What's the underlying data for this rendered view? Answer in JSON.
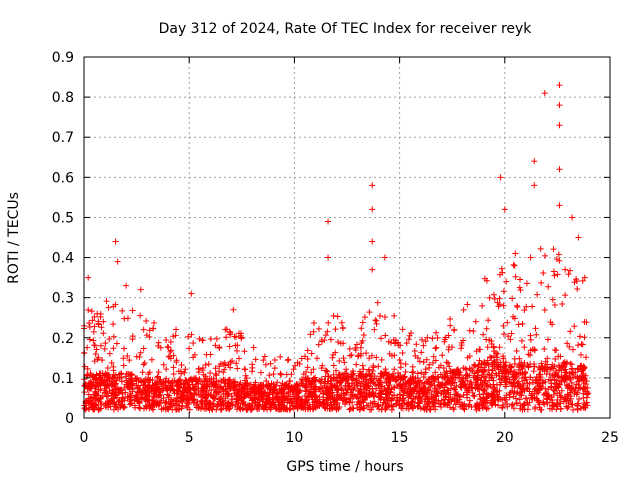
{
  "chart_data": {
    "type": "scatter",
    "title": "Day 312 of 2024, Rate Of TEC Index for receiver reyk",
    "xlabel": "GPS time / hours",
    "ylabel": "ROTI / TECUs",
    "xlim": [
      0,
      25
    ],
    "ylim": [
      0,
      0.9
    ],
    "xticks": [
      0,
      5,
      10,
      15,
      20,
      25
    ],
    "xtick_labels": [
      "0",
      "5",
      "10",
      "15",
      "20",
      "25"
    ],
    "yticks": [
      0,
      0.1,
      0.2,
      0.3,
      0.4,
      0.5,
      0.6,
      0.7,
      0.8,
      0.9
    ],
    "ytick_labels": [
      "0",
      "0.1",
      "0.2",
      "0.3",
      "0.4",
      "0.5",
      "0.6",
      "0.7",
      "0.8",
      "0.9"
    ],
    "grid": true,
    "marker": "+",
    "color": "#ff0000",
    "series": [
      {
        "name": "ROTI",
        "x_range": [
          0,
          24
        ],
        "envelope": [
          {
            "hour": 0,
            "low": 0.02,
            "typical": 0.08,
            "high": 0.27
          },
          {
            "hour": 1,
            "low": 0.02,
            "typical": 0.08,
            "high": 0.3
          },
          {
            "hour": 2,
            "low": 0.02,
            "typical": 0.08,
            "high": 0.28
          },
          {
            "hour": 3,
            "low": 0.02,
            "typical": 0.07,
            "high": 0.25
          },
          {
            "hour": 4,
            "low": 0.02,
            "typical": 0.07,
            "high": 0.23
          },
          {
            "hour": 5,
            "low": 0.02,
            "typical": 0.07,
            "high": 0.22
          },
          {
            "hour": 6,
            "low": 0.02,
            "typical": 0.07,
            "high": 0.2
          },
          {
            "hour": 7,
            "low": 0.02,
            "typical": 0.07,
            "high": 0.24
          },
          {
            "hour": 8,
            "low": 0.02,
            "typical": 0.06,
            "high": 0.18
          },
          {
            "hour": 9,
            "low": 0.02,
            "typical": 0.06,
            "high": 0.16
          },
          {
            "hour": 10,
            "low": 0.02,
            "typical": 0.06,
            "high": 0.14
          },
          {
            "hour": 11,
            "low": 0.02,
            "typical": 0.07,
            "high": 0.25
          },
          {
            "hour": 12,
            "low": 0.02,
            "typical": 0.08,
            "high": 0.28
          },
          {
            "hour": 13,
            "low": 0.02,
            "typical": 0.08,
            "high": 0.25
          },
          {
            "hour": 14,
            "low": 0.02,
            "typical": 0.08,
            "high": 0.3
          },
          {
            "hour": 15,
            "low": 0.02,
            "typical": 0.08,
            "high": 0.25
          },
          {
            "hour": 16,
            "low": 0.02,
            "typical": 0.07,
            "high": 0.2
          },
          {
            "hour": 17,
            "low": 0.02,
            "typical": 0.08,
            "high": 0.22
          },
          {
            "hour": 18,
            "low": 0.02,
            "typical": 0.09,
            "high": 0.3
          },
          {
            "hour": 19,
            "low": 0.02,
            "typical": 0.1,
            "high": 0.35
          },
          {
            "hour": 20,
            "low": 0.02,
            "typical": 0.1,
            "high": 0.38
          },
          {
            "hour": 21,
            "low": 0.02,
            "typical": 0.1,
            "high": 0.4
          },
          {
            "hour": 22,
            "low": 0.02,
            "typical": 0.1,
            "high": 0.45
          },
          {
            "hour": 23,
            "low": 0.02,
            "typical": 0.1,
            "high": 0.4
          },
          {
            "hour": 24,
            "low": 0.02,
            "typical": 0.09,
            "high": 0.35
          }
        ],
        "peaks": [
          {
            "x": 0.2,
            "y": 0.35
          },
          {
            "x": 1.5,
            "y": 0.44
          },
          {
            "x": 1.6,
            "y": 0.39
          },
          {
            "x": 2.0,
            "y": 0.33
          },
          {
            "x": 2.7,
            "y": 0.32
          },
          {
            "x": 5.1,
            "y": 0.31
          },
          {
            "x": 7.1,
            "y": 0.27
          },
          {
            "x": 11.6,
            "y": 0.49
          },
          {
            "x": 11.6,
            "y": 0.4
          },
          {
            "x": 13.7,
            "y": 0.58
          },
          {
            "x": 13.7,
            "y": 0.52
          },
          {
            "x": 13.7,
            "y": 0.44
          },
          {
            "x": 13.7,
            "y": 0.37
          },
          {
            "x": 14.3,
            "y": 0.4
          },
          {
            "x": 19.8,
            "y": 0.6
          },
          {
            "x": 20.0,
            "y": 0.52
          },
          {
            "x": 20.5,
            "y": 0.41
          },
          {
            "x": 21.4,
            "y": 0.64
          },
          {
            "x": 21.4,
            "y": 0.58
          },
          {
            "x": 21.9,
            "y": 0.81
          },
          {
            "x": 22.6,
            "y": 0.83
          },
          {
            "x": 22.6,
            "y": 0.78
          },
          {
            "x": 22.6,
            "y": 0.73
          },
          {
            "x": 22.6,
            "y": 0.62
          },
          {
            "x": 22.6,
            "y": 0.53
          },
          {
            "x": 23.2,
            "y": 0.5
          },
          {
            "x": 23.5,
            "y": 0.45
          },
          {
            "x": 23.8,
            "y": 0.35
          }
        ]
      }
    ]
  }
}
